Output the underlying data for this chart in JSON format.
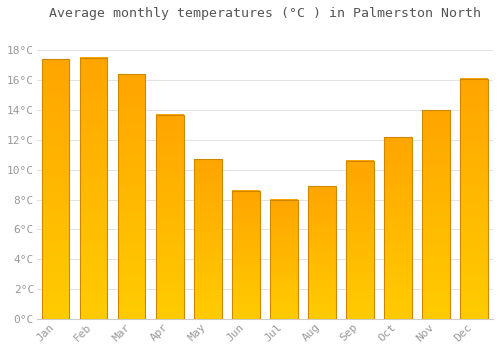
{
  "title": "Average monthly temperatures (°C ) in Palmerston North",
  "months": [
    "Jan",
    "Feb",
    "Mar",
    "Apr",
    "May",
    "Jun",
    "Jul",
    "Aug",
    "Sep",
    "Oct",
    "Nov",
    "Dec"
  ],
  "values": [
    17.4,
    17.5,
    16.4,
    13.7,
    10.7,
    8.6,
    8.0,
    8.9,
    10.6,
    12.2,
    14.0,
    16.1
  ],
  "bar_color_bottom": "#FFCC00",
  "bar_color_top": "#FFA500",
  "bar_edge_color": "#CC8800",
  "background_color": "#FFFFFF",
  "plot_bg_color": "#FFFFFF",
  "grid_color": "#DDDDDD",
  "ytick_labels": [
    "0°C",
    "2°C",
    "4°C",
    "6°C",
    "8°C",
    "10°C",
    "12°C",
    "14°C",
    "16°C",
    "18°C"
  ],
  "ytick_values": [
    0,
    2,
    4,
    6,
    8,
    10,
    12,
    14,
    16,
    18
  ],
  "ylim": [
    0,
    19.5
  ],
  "title_fontsize": 9.5,
  "tick_fontsize": 8,
  "tick_color": "#999999",
  "title_color": "#555555",
  "bar_width": 0.72
}
